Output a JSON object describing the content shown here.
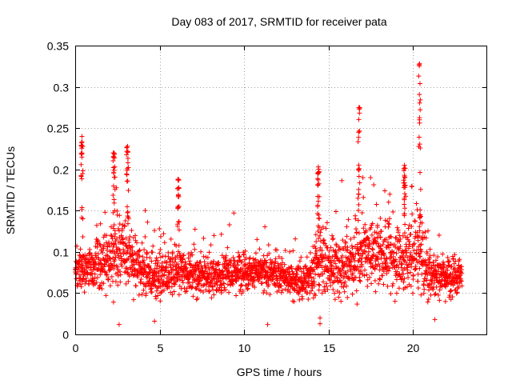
{
  "chart_data": {
    "type": "scatter",
    "title": "Day 083 of 2017, SRMTID for receiver pata",
    "xlabel": "GPS time / hours",
    "ylabel": "SRMTID / TECUs",
    "xlim": [
      0,
      24.4
    ],
    "ylim": [
      0,
      0.35
    ],
    "x_ticks": [
      0,
      5,
      10,
      15,
      20
    ],
    "x_tick_labels": [
      "0",
      "5",
      "10",
      "15",
      "20"
    ],
    "y_ticks": [
      0,
      0.05,
      0.1,
      0.15,
      0.2,
      0.25,
      0.3,
      0.35
    ],
    "y_tick_labels": [
      "0",
      "0.05",
      "0.1",
      "0.15",
      "0.2",
      "0.25",
      "0.3",
      "0.35"
    ],
    "grid": true,
    "marker": "plus",
    "marker_color": "#ff0000",
    "point_count": 2400,
    "x_data_range": [
      0,
      22.9
    ],
    "median_track": [
      [
        0,
        0.078
      ],
      [
        1,
        0.08
      ],
      [
        2,
        0.088
      ],
      [
        2.5,
        0.1
      ],
      [
        3,
        0.098
      ],
      [
        4,
        0.076
      ],
      [
        5,
        0.065
      ],
      [
        6,
        0.078
      ],
      [
        7,
        0.075
      ],
      [
        8,
        0.07
      ],
      [
        9,
        0.075
      ],
      [
        10,
        0.078
      ],
      [
        11,
        0.075
      ],
      [
        12,
        0.072
      ],
      [
        13,
        0.065
      ],
      [
        13.5,
        0.062
      ],
      [
        14.5,
        0.09
      ],
      [
        15,
        0.08
      ],
      [
        16,
        0.085
      ],
      [
        16.8,
        0.095
      ],
      [
        17.5,
        0.1
      ],
      [
        18.5,
        0.095
      ],
      [
        19.5,
        0.09
      ],
      [
        20.3,
        0.105
      ],
      [
        21,
        0.075
      ],
      [
        22,
        0.07
      ],
      [
        22.9,
        0.075
      ]
    ],
    "spread_track": [
      [
        0,
        0.02
      ],
      [
        2.5,
        0.035
      ],
      [
        3.5,
        0.025
      ],
      [
        6,
        0.022
      ],
      [
        8,
        0.02
      ],
      [
        13.5,
        0.018
      ],
      [
        14.5,
        0.03
      ],
      [
        17,
        0.035
      ],
      [
        18.5,
        0.03
      ],
      [
        20.3,
        0.04
      ],
      [
        21.5,
        0.02
      ],
      [
        22.9,
        0.02
      ]
    ],
    "spikes": [
      {
        "x": 0.4,
        "y_max": 0.24
      },
      {
        "x": 2.3,
        "y_max": 0.22
      },
      {
        "x": 3.1,
        "y_max": 0.228
      },
      {
        "x": 6.1,
        "y_max": 0.188
      },
      {
        "x": 14.4,
        "y_max": 0.203
      },
      {
        "x": 16.8,
        "y_max": 0.275
      },
      {
        "x": 19.5,
        "y_max": 0.205
      },
      {
        "x": 20.4,
        "y_max": 0.328
      }
    ],
    "low_outliers": [
      {
        "x": 2.6,
        "y": 0.012
      },
      {
        "x": 4.7,
        "y": 0.016
      },
      {
        "x": 11.4,
        "y": 0.012
      },
      {
        "x": 14.5,
        "y": 0.013
      },
      {
        "x": 14.5,
        "y": 0.02
      },
      {
        "x": 21.3,
        "y": 0.018
      }
    ]
  }
}
